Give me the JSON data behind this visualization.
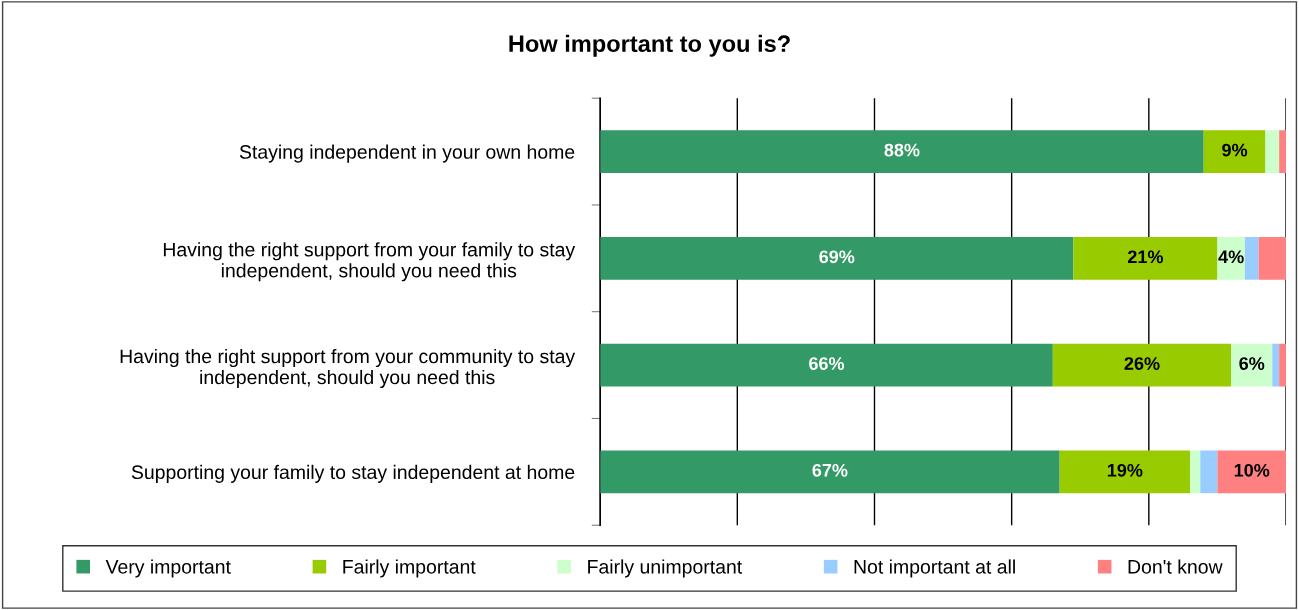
{
  "chart_data": {
    "type": "bar",
    "orientation": "horizontal",
    "stacked": true,
    "title": "How important to you is?",
    "categories": [
      "Staying independent in your own home",
      "Having the right support from your family to stay\nindependent, should you need this",
      "Having the right support from your community to stay\nindependent, should you need this",
      "Supporting your family to stay independent at home"
    ],
    "series": [
      {
        "name": "Very important",
        "color": "#339966",
        "values": [
          88,
          69,
          66,
          67
        ],
        "value_labels": [
          "88%",
          "69%",
          "66%",
          "67%"
        ]
      },
      {
        "name": "Fairly important",
        "color": "#99cc00",
        "values": [
          9,
          21,
          26,
          19
        ],
        "value_labels": [
          "9%",
          "21%",
          "26%",
          "19%"
        ]
      },
      {
        "name": "Fairly unimportant",
        "color": "#ccffcc",
        "values": [
          2,
          4,
          6,
          1.5
        ],
        "value_labels": [
          null,
          "4%",
          "6%",
          null
        ]
      },
      {
        "name": "Not important at all",
        "color": "#99ccff",
        "values": [
          0,
          2,
          1,
          2.5
        ],
        "value_labels": [
          null,
          null,
          null,
          null
        ]
      },
      {
        "name": "Don't know",
        "color": "#ff8080",
        "values": [
          1,
          4,
          1,
          10
        ],
        "value_labels": [
          null,
          null,
          null,
          "10%"
        ]
      }
    ],
    "xlim": [
      0,
      100
    ],
    "xticks": [
      {
        "value": 0,
        "label": null
      },
      {
        "value": 20,
        "label": null
      },
      {
        "value": 40,
        "label": null
      },
      {
        "value": 60,
        "label": null
      },
      {
        "value": 80,
        "label": null
      },
      {
        "value": 100,
        "label": null
      }
    ],
    "tick_labels": "y",
    "grid": "x",
    "legend": "bottom"
  }
}
